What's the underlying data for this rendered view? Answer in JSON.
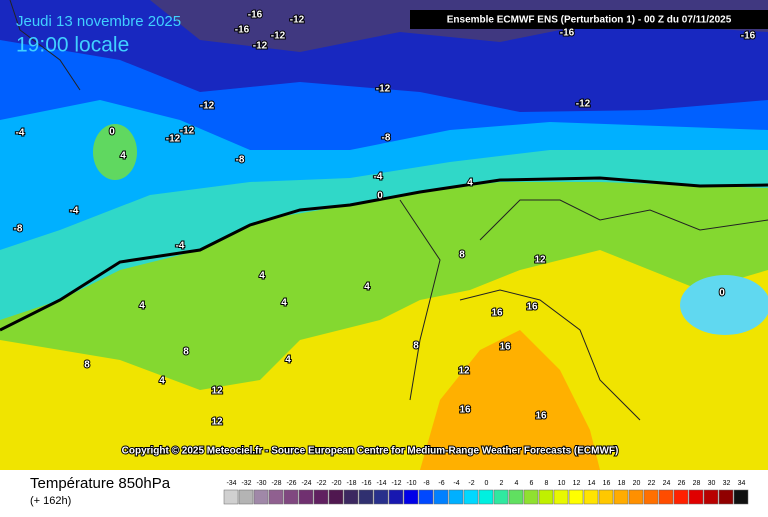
{
  "header": {
    "date": "Jeudi 13 novembre 2025",
    "time": "19:00 locale",
    "run": "Ensemble ECMWF ENS  (Perturbation 1)  -  00 Z du 07/11/2025"
  },
  "map": {
    "contour_labels": [
      -16,
      -12,
      -16,
      -12,
      -12,
      -12,
      -12,
      -12,
      -12,
      -12,
      -8,
      -8,
      -8,
      -4,
      -4,
      -4,
      -4,
      0,
      0,
      0,
      4,
      4,
      4,
      4,
      4,
      4,
      4,
      4,
      8,
      8,
      8,
      8,
      12,
      12,
      12,
      12,
      16,
      16,
      16,
      16,
      16,
      -16,
      -16
    ],
    "copyright": "Copyright © 2025 Meteociel.fr - Source European Centre for Medium-Range Weather Forecasts (ECMWF)"
  },
  "legend": {
    "title": "Température 850hPa",
    "lead": "(+ 162h)",
    "values": [
      -34,
      -32,
      -30,
      -28,
      -26,
      -24,
      -22,
      -20,
      -18,
      -16,
      -14,
      -12,
      -10,
      -8,
      -6,
      -4,
      -2,
      0,
      2,
      4,
      6,
      8,
      10,
      12,
      14,
      16,
      18,
      20,
      22,
      24,
      26,
      28,
      30,
      32,
      34
    ],
    "colors": [
      "#d0d0d0",
      "#b4b4b4",
      "#a088a8",
      "#906090",
      "#804880",
      "#703070",
      "#602060",
      "#501850",
      "#3c2860",
      "#303070",
      "#28308c",
      "#1818b0",
      "#0000e8",
      "#0048ff",
      "#0080ff",
      "#00b0ff",
      "#00d8ff",
      "#00f0e0",
      "#30e8a0",
      "#60e060",
      "#90e030",
      "#c0f000",
      "#e8f800",
      "#ffff00",
      "#ffe400",
      "#ffc800",
      "#ffac00",
      "#ff9000",
      "#ff7000",
      "#ff4c00",
      "#ff2000",
      "#e00000",
      "#b80000",
      "#900000",
      "#101010"
    ]
  }
}
